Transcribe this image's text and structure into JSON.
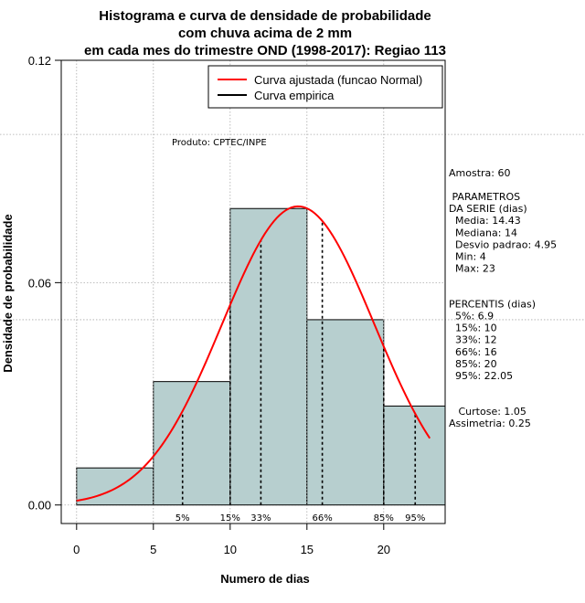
{
  "chart_data": {
    "type": "bar",
    "title_lines": [
      "Histograma e curva de densidade de probabilidade",
      "com chuva acima de 2 mm",
      "em cada mes do trimestre OND (1998-2017): Regiao 113"
    ],
    "xlabel": "Numero de dias",
    "ylabel": "Densidade de probabilidade",
    "xlim": [
      -1,
      24
    ],
    "ylim": [
      -0.005,
      0.12
    ],
    "x_ticks": [
      0,
      5,
      10,
      15,
      20
    ],
    "y_ticks": [
      0.0,
      0.06,
      0.12
    ],
    "y_tick_labels": [
      "0.00",
      "0.06",
      "0.12"
    ],
    "bins": [
      {
        "x0": 0,
        "x1": 5,
        "density": 0.01
      },
      {
        "x0": 5,
        "x1": 10,
        "density": 0.0333
      },
      {
        "x0": 10,
        "x1": 15,
        "density": 0.08
      },
      {
        "x0": 15,
        "x1": 20,
        "density": 0.05
      },
      {
        "x0": 20,
        "x1": 24,
        "density": 0.0267
      }
    ],
    "normal_fit": {
      "mean": 14.43,
      "sd": 4.95,
      "x_start": 0,
      "x_end": 23
    },
    "percentiles": [
      {
        "label": "5%",
        "x": 6.9
      },
      {
        "label": "15%",
        "x": 10
      },
      {
        "label": "33%",
        "x": 12
      },
      {
        "label": "66%",
        "x": 16
      },
      {
        "label": "85%",
        "x": 20
      },
      {
        "label": "95%",
        "x": 22.05
      }
    ],
    "hgrid_values": [
      0.1,
      0.05
    ],
    "grid": true,
    "legend": {
      "placement": "top-right",
      "entries": [
        {
          "label": "Curva ajustada (funcao Normal)",
          "color": "#ff0000"
        },
        {
          "label": "Curva empirica",
          "color": "#000000"
        }
      ]
    },
    "annotation": "Produto: CPTEC/INPE",
    "colors": {
      "bar_fill": "#b7cfcf",
      "fit_line": "#ff0000",
      "grid": "#aaaaaa"
    },
    "side_panel": [
      "Amostra: 60",
      "",
      " PARAMETROS",
      "DA SERIE (dias)",
      "  Media: 14.43",
      "  Mediana: 14",
      "  Desvio padrao: 4.95",
      "  Min: 4",
      "  Max: 23",
      "",
      "",
      "PERCENTIS (dias)",
      "  5%: 6.9",
      "  15%: 10",
      "  33%: 12",
      "  66%: 16",
      "  85%: 20",
      "  95%: 22.05",
      "",
      "",
      "   Curtose: 1.05",
      "Assimetria: 0.25"
    ]
  }
}
